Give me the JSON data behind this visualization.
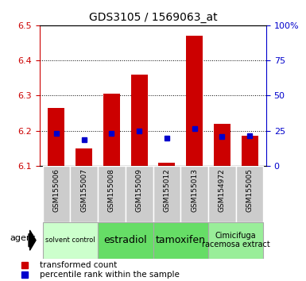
{
  "title": "GDS3105 / 1569063_at",
  "samples": [
    "GSM155006",
    "GSM155007",
    "GSM155008",
    "GSM155009",
    "GSM155012",
    "GSM155013",
    "GSM154972",
    "GSM155005"
  ],
  "red_values": [
    6.265,
    6.15,
    6.305,
    6.36,
    6.108,
    6.47,
    6.22,
    6.185
  ],
  "blue_values": [
    6.193,
    6.175,
    6.193,
    6.198,
    6.178,
    6.207,
    6.183,
    6.185
  ],
  "ylim": [
    6.1,
    6.5
  ],
  "yticks_left": [
    6.1,
    6.2,
    6.3,
    6.4,
    6.5
  ],
  "yticks_right": [
    0,
    25,
    50,
    75,
    100
  ],
  "yticks_right_labels": [
    "0",
    "25",
    "50",
    "75",
    "100%"
  ],
  "left_color": "#cc0000",
  "right_color": "#0000cc",
  "blue_marker_size": 5,
  "agent_groups": [
    {
      "label": "solvent control",
      "span": [
        0,
        2
      ],
      "color": "#ccffcc",
      "fontsize": 6
    },
    {
      "label": "estradiol",
      "span": [
        2,
        4
      ],
      "color": "#66dd66",
      "fontsize": 9
    },
    {
      "label": "tamoxifen",
      "span": [
        4,
        6
      ],
      "color": "#66dd66",
      "fontsize": 9
    },
    {
      "label": "Cimicifuga\nracemosa extract",
      "span": [
        6,
        8
      ],
      "color": "#99ee99",
      "fontsize": 7
    }
  ],
  "agent_label": "agent",
  "legend_red": "transformed count",
  "legend_blue": "percentile rank within the sample",
  "bar_bottom": 6.1,
  "bar_color": "#cc0000",
  "sample_box_color": "#cccccc",
  "grid_color": "#000000"
}
